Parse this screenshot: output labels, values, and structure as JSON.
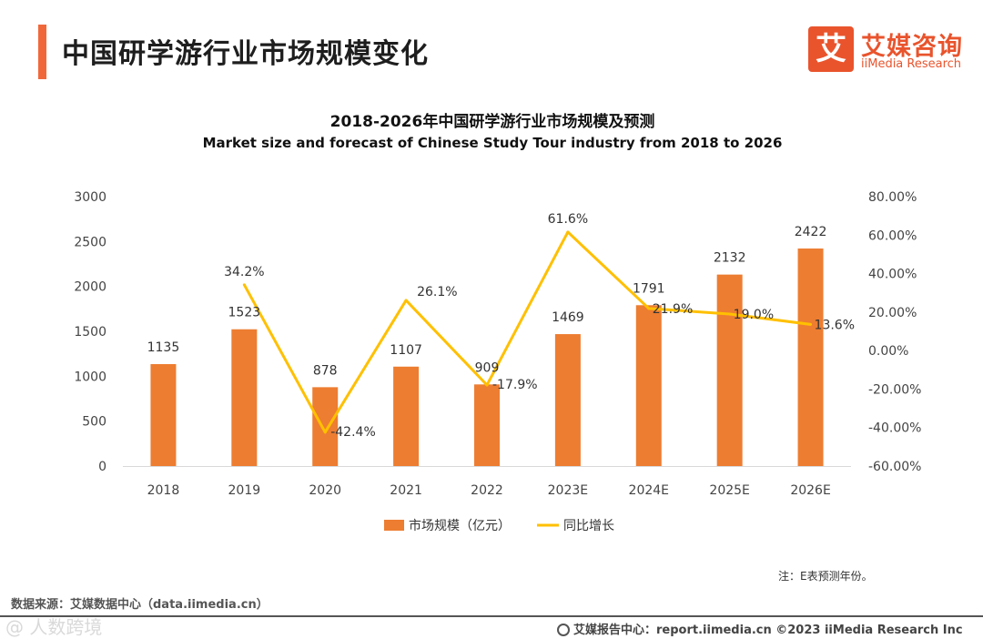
{
  "header": {
    "title": "中国研学游行业市场规模变化",
    "logo_icon": "艾",
    "logo_cn": "艾媒咨询",
    "logo_en": "iiMedia Research"
  },
  "colors": {
    "bar": "#ed7d31",
    "line": "#ffc000",
    "accent": "#f0683a"
  },
  "chart_data": {
    "type": "bar",
    "title": "2018-2026年中国研学游行业市场规模及预测",
    "subtitle": "Market size and forecast of Chinese Study Tour industry from 2018 to 2026",
    "categories": [
      "2018",
      "2019",
      "2020",
      "2021",
      "2022",
      "2023E",
      "2024E",
      "2025E",
      "2026E"
    ],
    "series": [
      {
        "name": "市场规模（亿元）",
        "type": "bar",
        "axis": "left",
        "values": [
          1135,
          1523,
          878,
          1107,
          909,
          1469,
          1791,
          2132,
          2422
        ],
        "labels": [
          "1135",
          "1523",
          "878",
          "1107",
          "909",
          "1469",
          "1791",
          "2132",
          "2422"
        ]
      },
      {
        "name": "同比增长",
        "type": "line",
        "axis": "right",
        "values": [
          null,
          34.2,
          -42.4,
          26.1,
          -17.9,
          61.6,
          21.9,
          19.0,
          13.6
        ],
        "labels": [
          "",
          "34.2%",
          "-42.4%",
          "26.1%",
          "-17.9%",
          "61.6%",
          "21.9%",
          "19.0%",
          "13.6%"
        ]
      }
    ],
    "ylim": [
      0,
      3000
    ],
    "yticks": [
      "3000",
      "2500",
      "2000",
      "1500",
      "1000",
      "500",
      "0"
    ],
    "y2lim": [
      -60,
      80
    ],
    "y2ticks": [
      "80.00%",
      "60.00%",
      "40.00%",
      "20.00%",
      "0.00%",
      "-20.00%",
      "-40.00%",
      "-60.00%"
    ],
    "grid": false,
    "legend_position": "bottom"
  },
  "note": "注：E表预测年份。",
  "source": "数据来源：艾媒数据中心（data.iimedia.cn）",
  "footer": "艾媒报告中心：report.iimedia.cn  ©2023  iiMedia Research  Inc",
  "watermark": "@ 人数跨境"
}
